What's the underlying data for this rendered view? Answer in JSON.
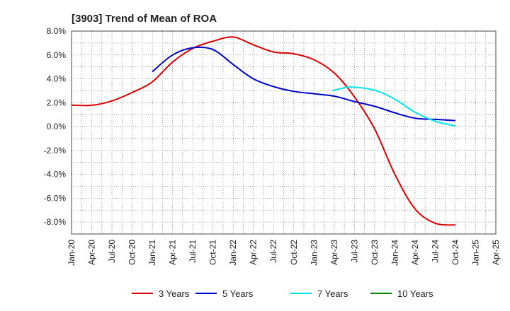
{
  "chart_data": {
    "type": "line",
    "title": "[3903]  Trend of Mean of ROA",
    "xlabel": "",
    "ylabel": "",
    "ylim": [
      -9,
      8
    ],
    "y_ticks": [
      8,
      6,
      4,
      2,
      0,
      -2,
      -4,
      -6,
      -8
    ],
    "y_tick_labels": [
      "8.0%",
      "6.0%",
      "4.0%",
      "2.0%",
      "0.0%",
      "-2.0%",
      "-4.0%",
      "-6.0%",
      "-8.0%"
    ],
    "categories": [
      "Jan-20",
      "Apr-20",
      "Jul-20",
      "Oct-20",
      "Jan-21",
      "Apr-21",
      "Jul-21",
      "Oct-21",
      "Jan-22",
      "Apr-22",
      "Jul-22",
      "Oct-22",
      "Jan-23",
      "Apr-23",
      "Jul-23",
      "Oct-23",
      "Jan-24",
      "Apr-24",
      "Jul-24",
      "Oct-24",
      "Jan-25",
      "Apr-25"
    ],
    "grid": true,
    "legend_position": "bottom",
    "series": [
      {
        "name": "3 Years",
        "color": "#dd0000",
        "points": [
          [
            0,
            1.8
          ],
          [
            1,
            1.78
          ],
          [
            2,
            2.15
          ],
          [
            3,
            2.85
          ],
          [
            4,
            3.75
          ],
          [
            5,
            5.4
          ],
          [
            6,
            6.55
          ],
          [
            7,
            7.15
          ],
          [
            8,
            7.5
          ],
          [
            9,
            6.85
          ],
          [
            10,
            6.25
          ],
          [
            11,
            6.1
          ],
          [
            12,
            5.6
          ],
          [
            13,
            4.5
          ],
          [
            14,
            2.5
          ],
          [
            15,
            -0.2
          ],
          [
            16,
            -4.0
          ],
          [
            17,
            -6.9
          ],
          [
            18,
            -8.1
          ],
          [
            19,
            -8.25
          ]
        ]
      },
      {
        "name": "5 Years",
        "color": "#0000cc",
        "points": [
          [
            4,
            4.6
          ],
          [
            5,
            6.0
          ],
          [
            6,
            6.6
          ],
          [
            7,
            6.45
          ],
          [
            8,
            5.2
          ],
          [
            9,
            4.0
          ],
          [
            10,
            3.35
          ],
          [
            11,
            2.95
          ],
          [
            12,
            2.75
          ],
          [
            13,
            2.55
          ],
          [
            14,
            2.1
          ],
          [
            15,
            1.7
          ],
          [
            16,
            1.15
          ],
          [
            17,
            0.7
          ],
          [
            18,
            0.6
          ],
          [
            19,
            0.5
          ]
        ]
      },
      {
        "name": "7 Years",
        "color": "#00e5ee",
        "points": [
          [
            12.9,
            3.0
          ],
          [
            13.5,
            3.25
          ],
          [
            14,
            3.3
          ],
          [
            15,
            3.05
          ],
          [
            16,
            2.3
          ],
          [
            17,
            1.2
          ],
          [
            18,
            0.45
          ],
          [
            19,
            0.05
          ]
        ]
      },
      {
        "name": "10 Years",
        "color": "#008800",
        "points": []
      }
    ]
  }
}
